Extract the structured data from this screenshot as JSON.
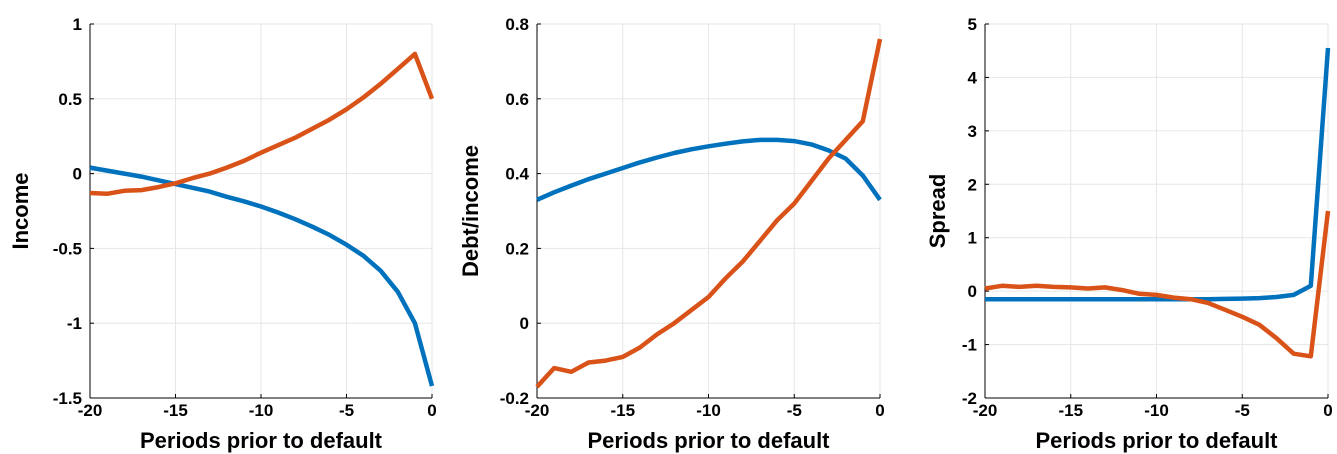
{
  "chart_data": [
    {
      "type": "line",
      "xlabel": "Periods prior to default",
      "ylabel": "Income",
      "xlim": [
        -20,
        0
      ],
      "ylim": [
        -1.5,
        1
      ],
      "xticks": [
        -20,
        -15,
        -10,
        -5,
        0
      ],
      "xtick_labels": [
        "-20",
        "-15",
        "-10",
        "-5",
        "0"
      ],
      "yticks": [
        -1.5,
        -1,
        -0.5,
        0,
        0.5,
        1
      ],
      "ytick_labels": [
        "-1.5",
        "-1",
        "-0.5",
        "0",
        "0.5",
        "1"
      ],
      "grid": true,
      "x": [
        -20,
        -19,
        -18,
        -17,
        -16,
        -15,
        -14,
        -13,
        -12,
        -11,
        -10,
        -9,
        -8,
        -7,
        -6,
        -5,
        -4,
        -3,
        -2,
        -1,
        0
      ],
      "series": [
        {
          "color": "#0072BD",
          "values": [
            0.04,
            0.02,
            0.0,
            -0.02,
            -0.045,
            -0.07,
            -0.095,
            -0.12,
            -0.155,
            -0.185,
            -0.22,
            -0.26,
            -0.305,
            -0.355,
            -0.41,
            -0.475,
            -0.55,
            -0.65,
            -0.79,
            -1.0,
            -1.42
          ]
        },
        {
          "color": "#D95319",
          "values": [
            -0.13,
            -0.135,
            -0.115,
            -0.11,
            -0.09,
            -0.065,
            -0.03,
            0.0,
            0.04,
            0.085,
            0.14,
            0.19,
            0.24,
            0.3,
            0.36,
            0.43,
            0.51,
            0.6,
            0.7,
            0.8,
            0.5
          ]
        }
      ]
    },
    {
      "type": "line",
      "xlabel": "Periods prior to default",
      "ylabel": "Debt/income",
      "xlim": [
        -20,
        0
      ],
      "ylim": [
        -0.2,
        0.8
      ],
      "xticks": [
        -20,
        -15,
        -10,
        -5,
        0
      ],
      "xtick_labels": [
        "-20",
        "-15",
        "-10",
        "-5",
        "0"
      ],
      "yticks": [
        -0.2,
        0,
        0.2,
        0.4,
        0.6,
        0.8
      ],
      "ytick_labels": [
        "-0.2",
        "0",
        "0.2",
        "0.4",
        "0.6",
        "0.8"
      ],
      "grid": true,
      "x": [
        -20,
        -19,
        -18,
        -17,
        -16,
        -15,
        -14,
        -13,
        -12,
        -11,
        -10,
        -9,
        -8,
        -7,
        -6,
        -5,
        -4,
        -3,
        -2,
        -1,
        0
      ],
      "series": [
        {
          "color": "#0072BD",
          "values": [
            0.33,
            0.35,
            0.368,
            0.385,
            0.4,
            0.415,
            0.43,
            0.443,
            0.455,
            0.465,
            0.473,
            0.48,
            0.486,
            0.49,
            0.49,
            0.487,
            0.478,
            0.462,
            0.44,
            0.395,
            0.33
          ]
        },
        {
          "color": "#D95319",
          "values": [
            -0.17,
            -0.12,
            -0.13,
            -0.105,
            -0.1,
            -0.09,
            -0.065,
            -0.03,
            0.0,
            0.035,
            0.07,
            0.12,
            0.165,
            0.22,
            0.275,
            0.32,
            0.38,
            0.44,
            0.49,
            0.54,
            0.76
          ]
        }
      ]
    },
    {
      "type": "line",
      "xlabel": "Periods prior to default",
      "ylabel": "Spread",
      "xlim": [
        -20,
        0
      ],
      "ylim": [
        -2,
        5
      ],
      "xticks": [
        -20,
        -15,
        -10,
        -5,
        0
      ],
      "xtick_labels": [
        "-20",
        "-15",
        "-10",
        "-5",
        "0"
      ],
      "yticks": [
        -2,
        -1,
        0,
        1,
        2,
        3,
        4,
        5
      ],
      "ytick_labels": [
        "-2",
        "-1",
        "0",
        "1",
        "2",
        "3",
        "4",
        "5"
      ],
      "grid": true,
      "x": [
        -20,
        -19,
        -18,
        -17,
        -16,
        -15,
        -14,
        -13,
        -12,
        -11,
        -10,
        -9,
        -8,
        -7,
        -6,
        -5,
        -4,
        -3,
        -2,
        -1,
        0
      ],
      "series": [
        {
          "color": "#0072BD",
          "values": [
            -0.15,
            -0.15,
            -0.15,
            -0.15,
            -0.15,
            -0.15,
            -0.15,
            -0.15,
            -0.15,
            -0.15,
            -0.15,
            -0.15,
            -0.15,
            -0.15,
            -0.145,
            -0.14,
            -0.13,
            -0.11,
            -0.07,
            0.1,
            4.55
          ]
        },
        {
          "color": "#D95319",
          "values": [
            0.05,
            0.1,
            0.08,
            0.1,
            0.08,
            0.07,
            0.05,
            0.07,
            0.02,
            -0.05,
            -0.07,
            -0.12,
            -0.15,
            -0.22,
            -0.35,
            -0.48,
            -0.63,
            -0.88,
            -1.17,
            -1.22,
            1.5
          ]
        }
      ]
    }
  ]
}
